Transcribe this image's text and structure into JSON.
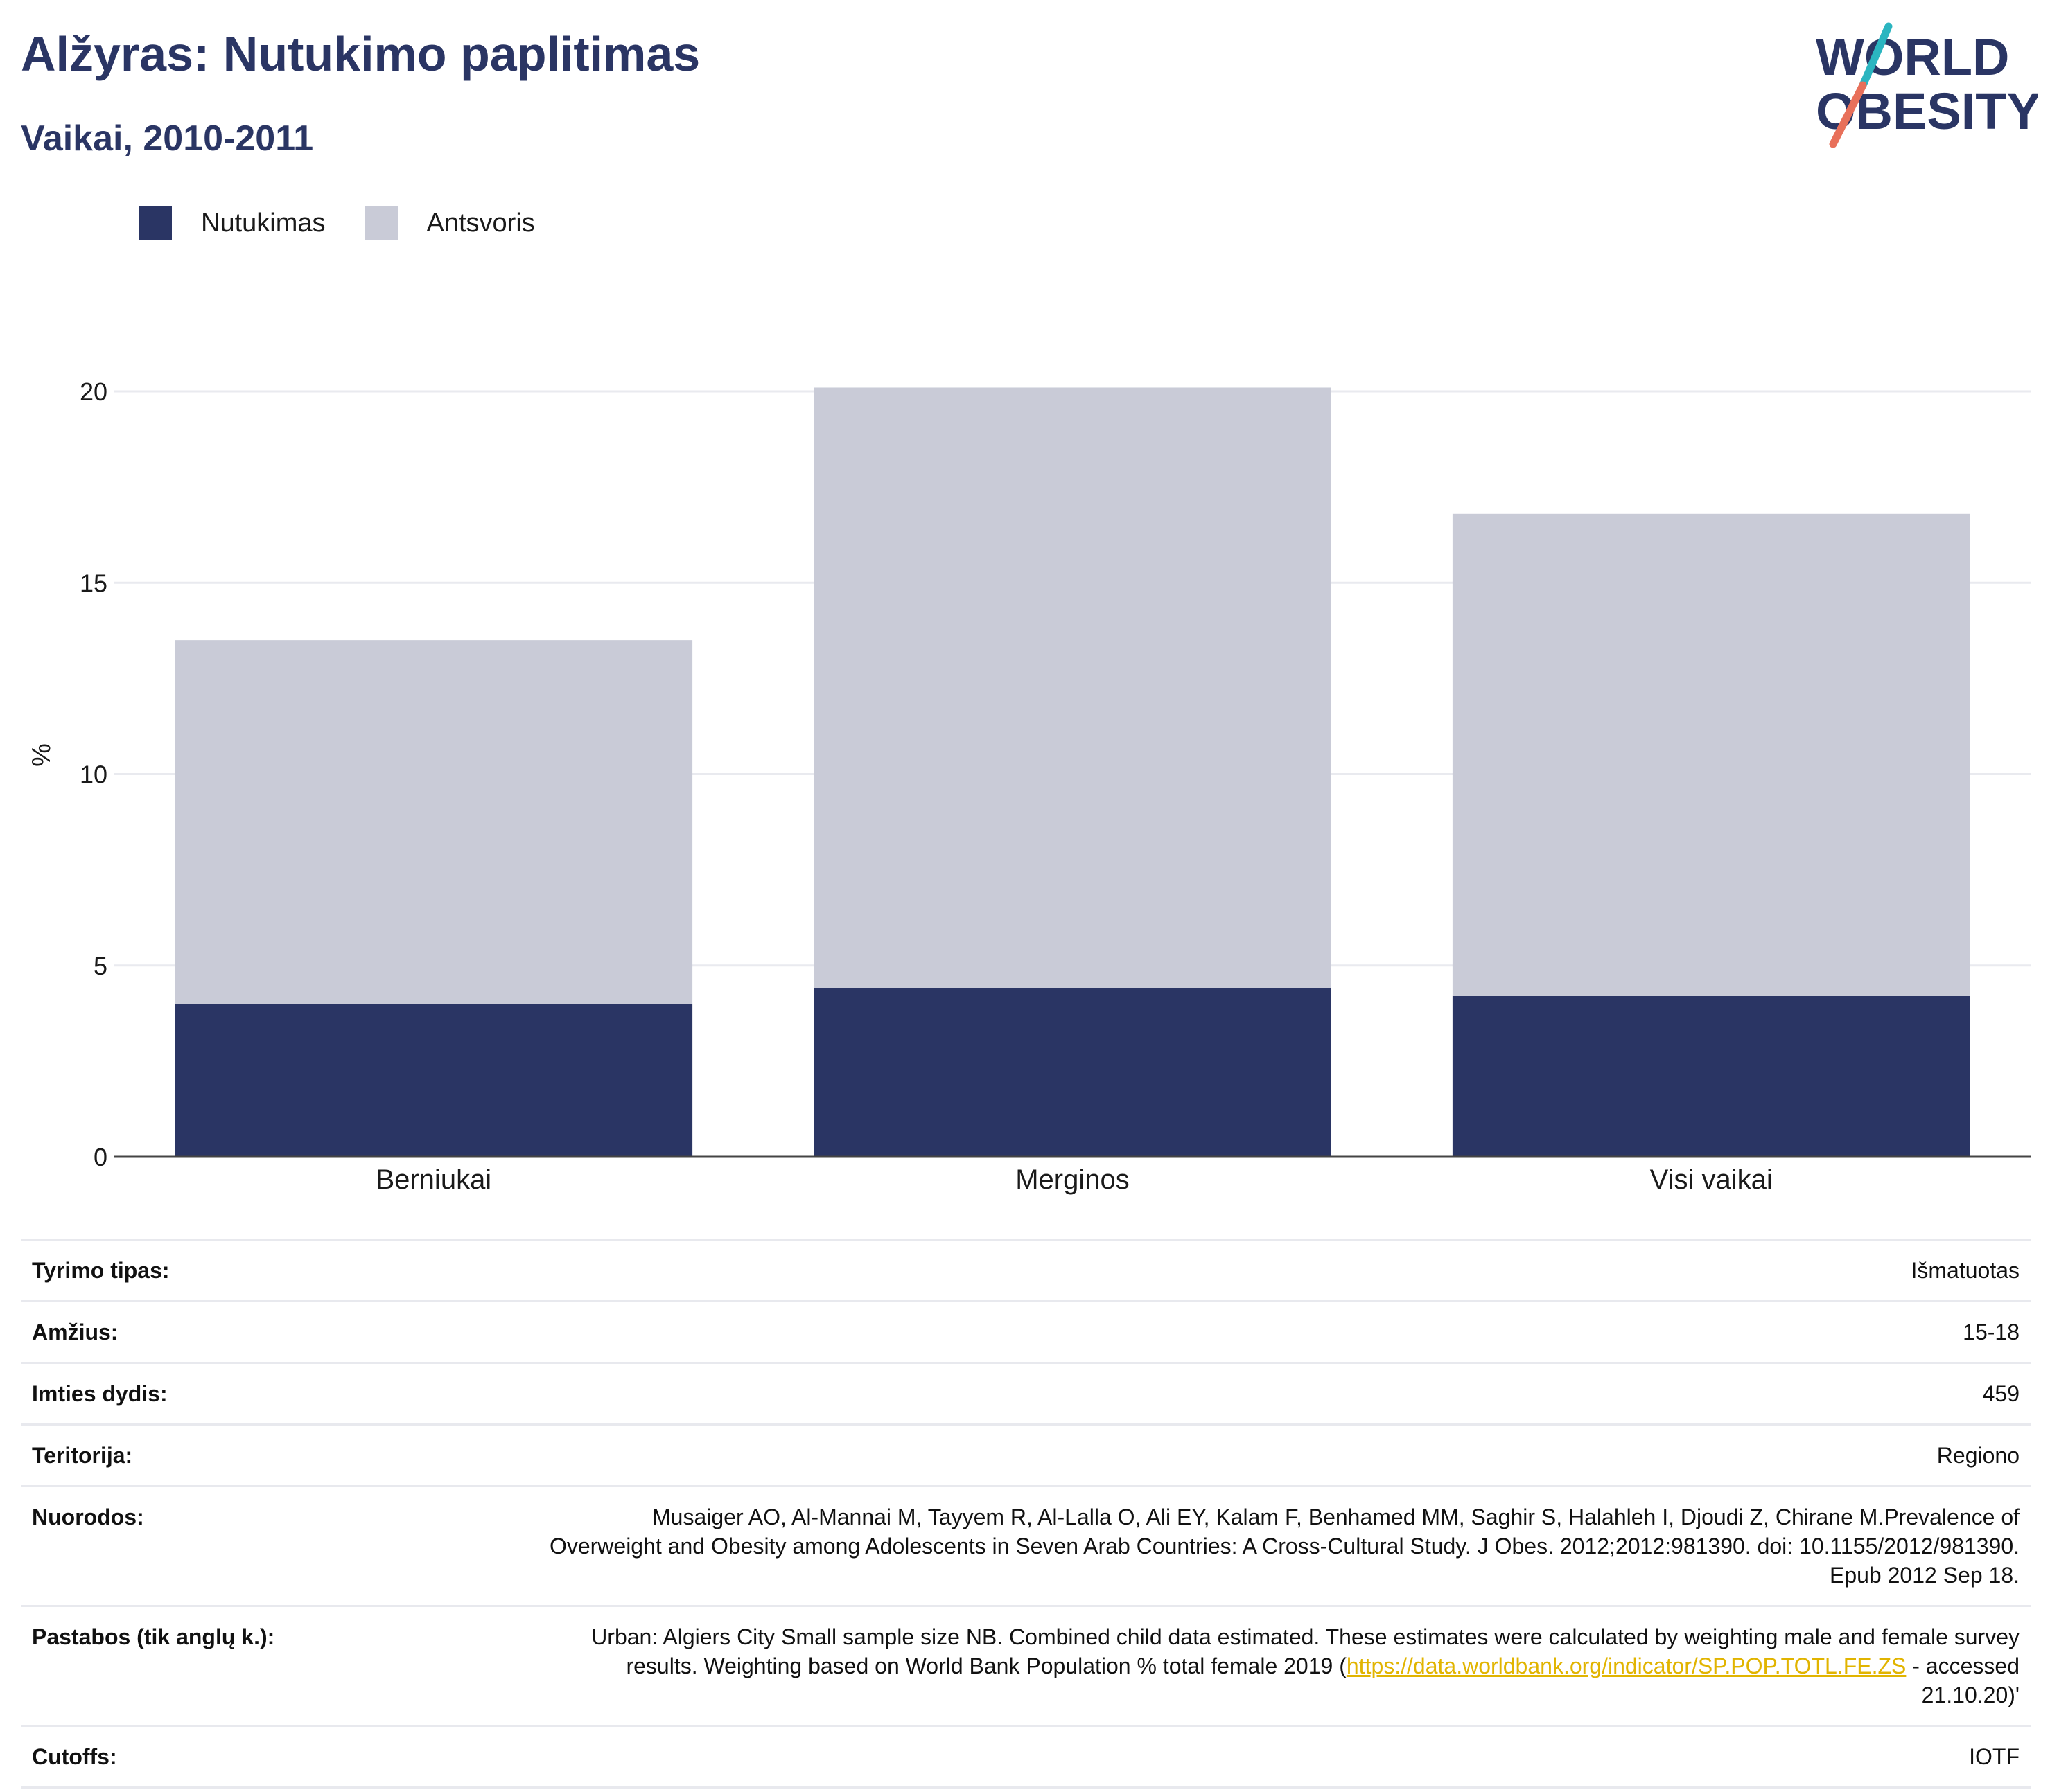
{
  "header": {
    "title": "Alžyras: Nutukimo paplitimas",
    "subtitle": "Vaikai, 2010-2011"
  },
  "logo": {
    "line1": "WORLD",
    "line2": "OBESITY",
    "colors": {
      "text": "#2a3564",
      "slash_teal": "#2bb5c0",
      "slash_coral": "#e8705a"
    }
  },
  "legend": {
    "items": [
      {
        "label": "Nutukimas",
        "color": "#2a3564"
      },
      {
        "label": "Antsvoris",
        "color": "#c9cbd7"
      }
    ]
  },
  "chart_data": {
    "type": "bar",
    "stacked": true,
    "categories": [
      "Berniukai",
      "Merginos",
      "Visi vaikai"
    ],
    "series": [
      {
        "name": "Nutukimas",
        "color": "#2a3564",
        "values": [
          4.0,
          4.4,
          4.2
        ]
      },
      {
        "name": "Antsvoris",
        "color": "#c9cbd7",
        "values": [
          9.5,
          15.7,
          12.6
        ]
      }
    ],
    "totals": [
      13.5,
      20.1,
      16.8
    ],
    "ylabel": "%",
    "ylim": [
      0,
      20
    ],
    "yticks": [
      0,
      5,
      10,
      15,
      20
    ],
    "grid": true,
    "legend_position": "top-left"
  },
  "info": {
    "rows": [
      {
        "label": "Tyrimo tipas:",
        "value": "Išmatuotas"
      },
      {
        "label": "Amžius:",
        "value": "15-18"
      },
      {
        "label": "Imties dydis:",
        "value": "459"
      },
      {
        "label": "Teritorija:",
        "value": "Regiono"
      },
      {
        "label": "Nuorodos:",
        "value": "Musaiger AO, Al-Mannai M, Tayyem R, Al-Lalla O, Ali EY, Kalam F, Benhamed MM, Saghir S, Halahleh I, Djoudi Z, Chirane M.Prevalence of Overweight and Obesity among Adolescents in Seven Arab Countries: A Cross-Cultural Study. J Obes. 2012;2012:981390. doi: 10.1155/2012/981390. Epub 2012 Sep 18."
      },
      {
        "label": "Pastabos (tik anglų k.):",
        "value_prefix": "Urban: Algiers City Small sample size NB. Combined child data estimated. These estimates were calculated by weighting male and female survey results. Weighting based on World Bank Population % total female 2019 (",
        "link": "https://data.worldbank.org/indicator/SP.POP.TOTL.FE.ZS",
        "value_suffix": " - accessed 21.10.20)'"
      },
      {
        "label": "Cutoffs:",
        "value": "IOTF"
      }
    ]
  }
}
